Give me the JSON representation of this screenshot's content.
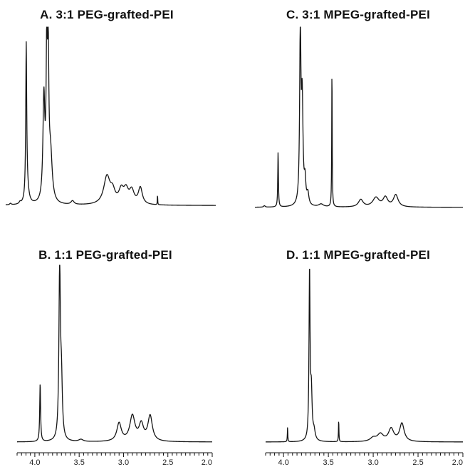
{
  "chart_data": [
    {
      "type": "line",
      "panel": "A",
      "title": "A. 3:1 PEG-grafted-PEI",
      "x_axis_visible": false,
      "xlim": [
        4.2,
        2.0
      ],
      "ylim": [
        0,
        1
      ],
      "baseline": 0.03,
      "peaks": [
        {
          "x": 4.22,
          "h": 0.008,
          "w": 0.01
        },
        {
          "x": 4.15,
          "h": 0.008,
          "w": 0.01
        },
        {
          "x": 4.05,
          "h": 0.01,
          "w": 0.01
        },
        {
          "x": 3.985,
          "h": 0.82,
          "w": 0.006
        },
        {
          "x": 3.975,
          "h": 0.08,
          "w": 0.02
        },
        {
          "x": 3.8,
          "h": 0.55,
          "w": 0.012
        },
        {
          "x": 3.77,
          "h": 0.75,
          "w": 0.008
        },
        {
          "x": 3.755,
          "h": 0.72,
          "w": 0.008
        },
        {
          "x": 3.73,
          "h": 0.25,
          "w": 0.02
        },
        {
          "x": 3.5,
          "h": 0.02,
          "w": 0.02
        },
        {
          "x": 3.14,
          "h": 0.15,
          "w": 0.04
        },
        {
          "x": 3.08,
          "h": 0.06,
          "w": 0.03
        },
        {
          "x": 2.99,
          "h": 0.07,
          "w": 0.03
        },
        {
          "x": 2.94,
          "h": 0.07,
          "w": 0.03
        },
        {
          "x": 2.88,
          "h": 0.07,
          "w": 0.03
        },
        {
          "x": 2.79,
          "h": 0.09,
          "w": 0.025
        },
        {
          "x": 2.61,
          "h": 0.06,
          "w": 0.002
        }
      ]
    },
    {
      "type": "line",
      "panel": "C",
      "title": "C. 3:1 MPEG-grafted-PEI",
      "x_axis_visible": false,
      "xlim": [
        4.2,
        2.0
      ],
      "ylim": [
        0,
        1
      ],
      "baseline": 0.02,
      "peaks": [
        {
          "x": 4.1,
          "h": 0.008,
          "w": 0.01
        },
        {
          "x": 3.955,
          "h": 0.3,
          "w": 0.004
        },
        {
          "x": 3.72,
          "h": 0.95,
          "w": 0.008
        },
        {
          "x": 3.7,
          "h": 0.55,
          "w": 0.01
        },
        {
          "x": 3.67,
          "h": 0.12,
          "w": 0.01
        },
        {
          "x": 3.64,
          "h": 0.06,
          "w": 0.012
        },
        {
          "x": 3.5,
          "h": 0.015,
          "w": 0.03
        },
        {
          "x": 3.385,
          "h": 0.77,
          "w": 0.003
        },
        {
          "x": 3.08,
          "h": 0.04,
          "w": 0.03
        },
        {
          "x": 2.92,
          "h": 0.05,
          "w": 0.04
        },
        {
          "x": 2.82,
          "h": 0.05,
          "w": 0.03
        },
        {
          "x": 2.71,
          "h": 0.065,
          "w": 0.03
        }
      ]
    },
    {
      "type": "line",
      "panel": "B",
      "title": "B. 1:1 PEG-grafted-PEI",
      "x_axis_visible": true,
      "xlim": [
        4.2,
        2.0
      ],
      "ylim": [
        0,
        1
      ],
      "baseline": 0.02,
      "xticks": [
        4.0,
        3.5,
        3.0,
        2.5,
        2.0
      ],
      "xtick_labels": [
        "4.0",
        "3.5",
        "3.0",
        "2.5",
        "2.0"
      ],
      "peaks": [
        {
          "x": 3.94,
          "h": 0.32,
          "w": 0.006
        },
        {
          "x": 3.72,
          "h": 0.95,
          "w": 0.01
        },
        {
          "x": 3.7,
          "h": 0.3,
          "w": 0.012
        },
        {
          "x": 3.48,
          "h": 0.012,
          "w": 0.03
        },
        {
          "x": 3.05,
          "h": 0.1,
          "w": 0.03
        },
        {
          "x": 2.9,
          "h": 0.14,
          "w": 0.035
        },
        {
          "x": 2.8,
          "h": 0.09,
          "w": 0.03
        },
        {
          "x": 2.7,
          "h": 0.14,
          "w": 0.03
        }
      ]
    },
    {
      "type": "line",
      "panel": "D",
      "title": "D. 1:1 MPEG-grafted-PEI",
      "x_axis_visible": true,
      "xlim": [
        4.2,
        2.0
      ],
      "ylim": [
        0,
        1
      ],
      "baseline": 0.02,
      "xticks": [
        4.0,
        3.5,
        3.0,
        2.5,
        2.0
      ],
      "xtick_labels": [
        "4.0",
        "3.5",
        "3.0",
        "2.5",
        "2.0"
      ],
      "peaks": [
        {
          "x": 3.955,
          "h": 0.08,
          "w": 0.003
        },
        {
          "x": 3.71,
          "h": 0.93,
          "w": 0.007
        },
        {
          "x": 3.69,
          "h": 0.25,
          "w": 0.01
        },
        {
          "x": 3.66,
          "h": 0.05,
          "w": 0.015
        },
        {
          "x": 3.385,
          "h": 0.12,
          "w": 0.003
        },
        {
          "x": 3.0,
          "h": 0.02,
          "w": 0.04
        },
        {
          "x": 2.92,
          "h": 0.04,
          "w": 0.04
        },
        {
          "x": 2.8,
          "h": 0.07,
          "w": 0.035
        },
        {
          "x": 2.68,
          "h": 0.1,
          "w": 0.03
        }
      ]
    }
  ]
}
